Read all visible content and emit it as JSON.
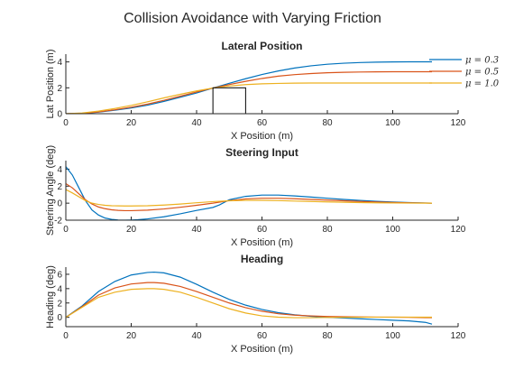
{
  "figure": {
    "title": "Collision Avoidance with Varying Friction",
    "legend_location": "top-right, outside the first panel",
    "obstacle": {
      "x": [
        45,
        55
      ],
      "y": [
        0,
        2
      ],
      "panel": 0
    }
  },
  "chart_data": [
    {
      "type": "line",
      "title": "Lateral Position",
      "xlabel": "X Position (m)",
      "ylabel": "Lat Position (m)",
      "xlim": [
        0,
        120
      ],
      "ylim": [
        0,
        4.6
      ],
      "xticks": [
        0,
        20,
        40,
        60,
        80,
        100,
        120
      ],
      "yticks": [
        0,
        2,
        4
      ],
      "grid": false,
      "legend": true,
      "series": [
        {
          "name": "μ = 0.3",
          "color": "#0072BD",
          "x": [
            0,
            5,
            10,
            15,
            20,
            25,
            30,
            35,
            40,
            45,
            50,
            55,
            60,
            65,
            70,
            75,
            80,
            85,
            90,
            95,
            100,
            105,
            110,
            112
          ],
          "y": [
            0,
            0.02,
            0.12,
            0.27,
            0.44,
            0.66,
            0.95,
            1.27,
            1.6,
            1.98,
            2.35,
            2.7,
            3.03,
            3.3,
            3.53,
            3.7,
            3.82,
            3.9,
            3.95,
            3.98,
            4.0,
            4.01,
            4.01,
            4.01
          ]
        },
        {
          "name": "μ = 0.5",
          "color": "#D95319",
          "x": [
            0,
            5,
            10,
            15,
            20,
            25,
            30,
            35,
            40,
            45,
            50,
            55,
            60,
            65,
            70,
            75,
            80,
            85,
            90,
            95,
            100,
            105,
            110,
            112
          ],
          "y": [
            0,
            0.03,
            0.14,
            0.3,
            0.5,
            0.74,
            1.03,
            1.35,
            1.68,
            1.98,
            2.25,
            2.5,
            2.72,
            2.9,
            3.02,
            3.1,
            3.16,
            3.2,
            3.22,
            3.23,
            3.24,
            3.24,
            3.24,
            3.24
          ]
        },
        {
          "name": "μ = 1.0",
          "color": "#EDB120",
          "x": [
            0,
            5,
            10,
            15,
            20,
            25,
            30,
            35,
            40,
            45,
            50,
            55,
            60,
            65,
            70,
            75,
            80,
            85,
            90,
            95,
            100,
            105,
            110,
            112
          ],
          "y": [
            0,
            0.05,
            0.2,
            0.4,
            0.64,
            0.92,
            1.22,
            1.5,
            1.76,
            1.98,
            2.14,
            2.25,
            2.31,
            2.34,
            2.36,
            2.37,
            2.37,
            2.37,
            2.37,
            2.37,
            2.37,
            2.37,
            2.37,
            2.37
          ]
        }
      ]
    },
    {
      "type": "line",
      "title": "Steering Input",
      "xlabel": "X Position (m)",
      "ylabel": "Steering Angle (deg)",
      "xlim": [
        0,
        120
      ],
      "ylim": [
        -2,
        5
      ],
      "xticks": [
        0,
        20,
        40,
        60,
        80,
        100,
        120
      ],
      "yticks": [
        -2,
        0,
        2,
        4
      ],
      "grid": false,
      "legend": false,
      "series": [
        {
          "color": "#0072BD",
          "x": [
            0,
            2,
            4,
            6,
            8,
            10,
            12,
            14,
            16,
            18,
            20,
            22,
            25,
            30,
            35,
            40,
            45,
            47,
            50,
            55,
            60,
            65,
            70,
            75,
            80,
            85,
            90,
            95,
            100,
            105,
            110,
            112
          ],
          "y": [
            4.3,
            3.3,
            1.8,
            0.3,
            -0.8,
            -1.4,
            -1.75,
            -1.9,
            -1.98,
            -2.0,
            -1.98,
            -1.95,
            -1.85,
            -1.6,
            -1.25,
            -0.85,
            -0.5,
            -0.2,
            0.4,
            0.8,
            0.95,
            0.95,
            0.85,
            0.72,
            0.58,
            0.44,
            0.32,
            0.22,
            0.14,
            0.07,
            0.02,
            0.0
          ]
        },
        {
          "color": "#D95319",
          "x": [
            0,
            2,
            4,
            6,
            8,
            10,
            12,
            14,
            16,
            18,
            20,
            25,
            30,
            35,
            40,
            45,
            50,
            55,
            60,
            65,
            70,
            75,
            80,
            85,
            90,
            95,
            100,
            105,
            110,
            112
          ],
          "y": [
            2.3,
            1.8,
            1.1,
            0.4,
            -0.1,
            -0.45,
            -0.65,
            -0.78,
            -0.85,
            -0.88,
            -0.88,
            -0.82,
            -0.68,
            -0.48,
            -0.25,
            0.0,
            0.3,
            0.5,
            0.58,
            0.58,
            0.52,
            0.44,
            0.36,
            0.28,
            0.2,
            0.14,
            0.09,
            0.05,
            0.02,
            0.0
          ]
        },
        {
          "color": "#EDB120",
          "x": [
            0,
            2,
            4,
            6,
            8,
            10,
            12,
            14,
            16,
            18,
            20,
            25,
            30,
            35,
            40,
            45,
            50,
            55,
            60,
            65,
            70,
            75,
            80,
            85,
            90,
            95,
            100,
            105,
            110,
            112
          ],
          "y": [
            1.6,
            1.2,
            0.75,
            0.3,
            0.0,
            -0.15,
            -0.25,
            -0.3,
            -0.32,
            -0.33,
            -0.33,
            -0.3,
            -0.22,
            -0.1,
            0.05,
            0.18,
            0.28,
            0.33,
            0.33,
            0.3,
            0.25,
            0.2,
            0.15,
            0.11,
            0.07,
            0.04,
            0.02,
            0.01,
            0.0,
            0.0
          ]
        }
      ]
    },
    {
      "type": "line",
      "title": "Heading",
      "xlabel": "X Position (m)",
      "ylabel": "Heading (deg)",
      "xlim": [
        0,
        120
      ],
      "ylim": [
        -1.3,
        7
      ],
      "xticks": [
        0,
        20,
        40,
        60,
        80,
        100,
        120
      ],
      "yticks": [
        0,
        2,
        4,
        6
      ],
      "grid": false,
      "legend": false,
      "series": [
        {
          "color": "#0072BD",
          "x": [
            0,
            5,
            10,
            15,
            20,
            25,
            27,
            30,
            35,
            40,
            45,
            50,
            55,
            60,
            65,
            70,
            75,
            80,
            85,
            90,
            95,
            100,
            105,
            110,
            112
          ],
          "y": [
            0,
            1.6,
            3.6,
            5.0,
            5.9,
            6.25,
            6.3,
            6.2,
            5.6,
            4.6,
            3.5,
            2.5,
            1.7,
            1.1,
            0.65,
            0.35,
            0.15,
            0.0,
            -0.1,
            -0.2,
            -0.3,
            -0.4,
            -0.5,
            -0.7,
            -0.95
          ]
        },
        {
          "color": "#D95319",
          "x": [
            0,
            5,
            10,
            15,
            20,
            25,
            27,
            30,
            35,
            40,
            45,
            50,
            55,
            60,
            65,
            70,
            75,
            80,
            85,
            90,
            95,
            100,
            105,
            110,
            112
          ],
          "y": [
            0,
            1.5,
            3.1,
            4.1,
            4.65,
            4.85,
            4.85,
            4.75,
            4.3,
            3.6,
            2.8,
            2.0,
            1.35,
            0.85,
            0.5,
            0.3,
            0.2,
            0.12,
            0.08,
            0.05,
            0.03,
            0.02,
            0.0,
            -0.05,
            -0.05
          ]
        },
        {
          "color": "#EDB120",
          "x": [
            0,
            5,
            10,
            15,
            20,
            25,
            27,
            30,
            35,
            40,
            45,
            50,
            55,
            60,
            65,
            70,
            75,
            80,
            85,
            90,
            95,
            100,
            105,
            110,
            112
          ],
          "y": [
            0,
            1.4,
            2.8,
            3.5,
            3.9,
            4.0,
            4.0,
            3.9,
            3.5,
            2.8,
            2.0,
            1.2,
            0.6,
            0.2,
            0.02,
            -0.05,
            -0.05,
            -0.02,
            0.0,
            0.02,
            0.03,
            0.03,
            0.03,
            0.02,
            0.02
          ]
        }
      ]
    }
  ]
}
